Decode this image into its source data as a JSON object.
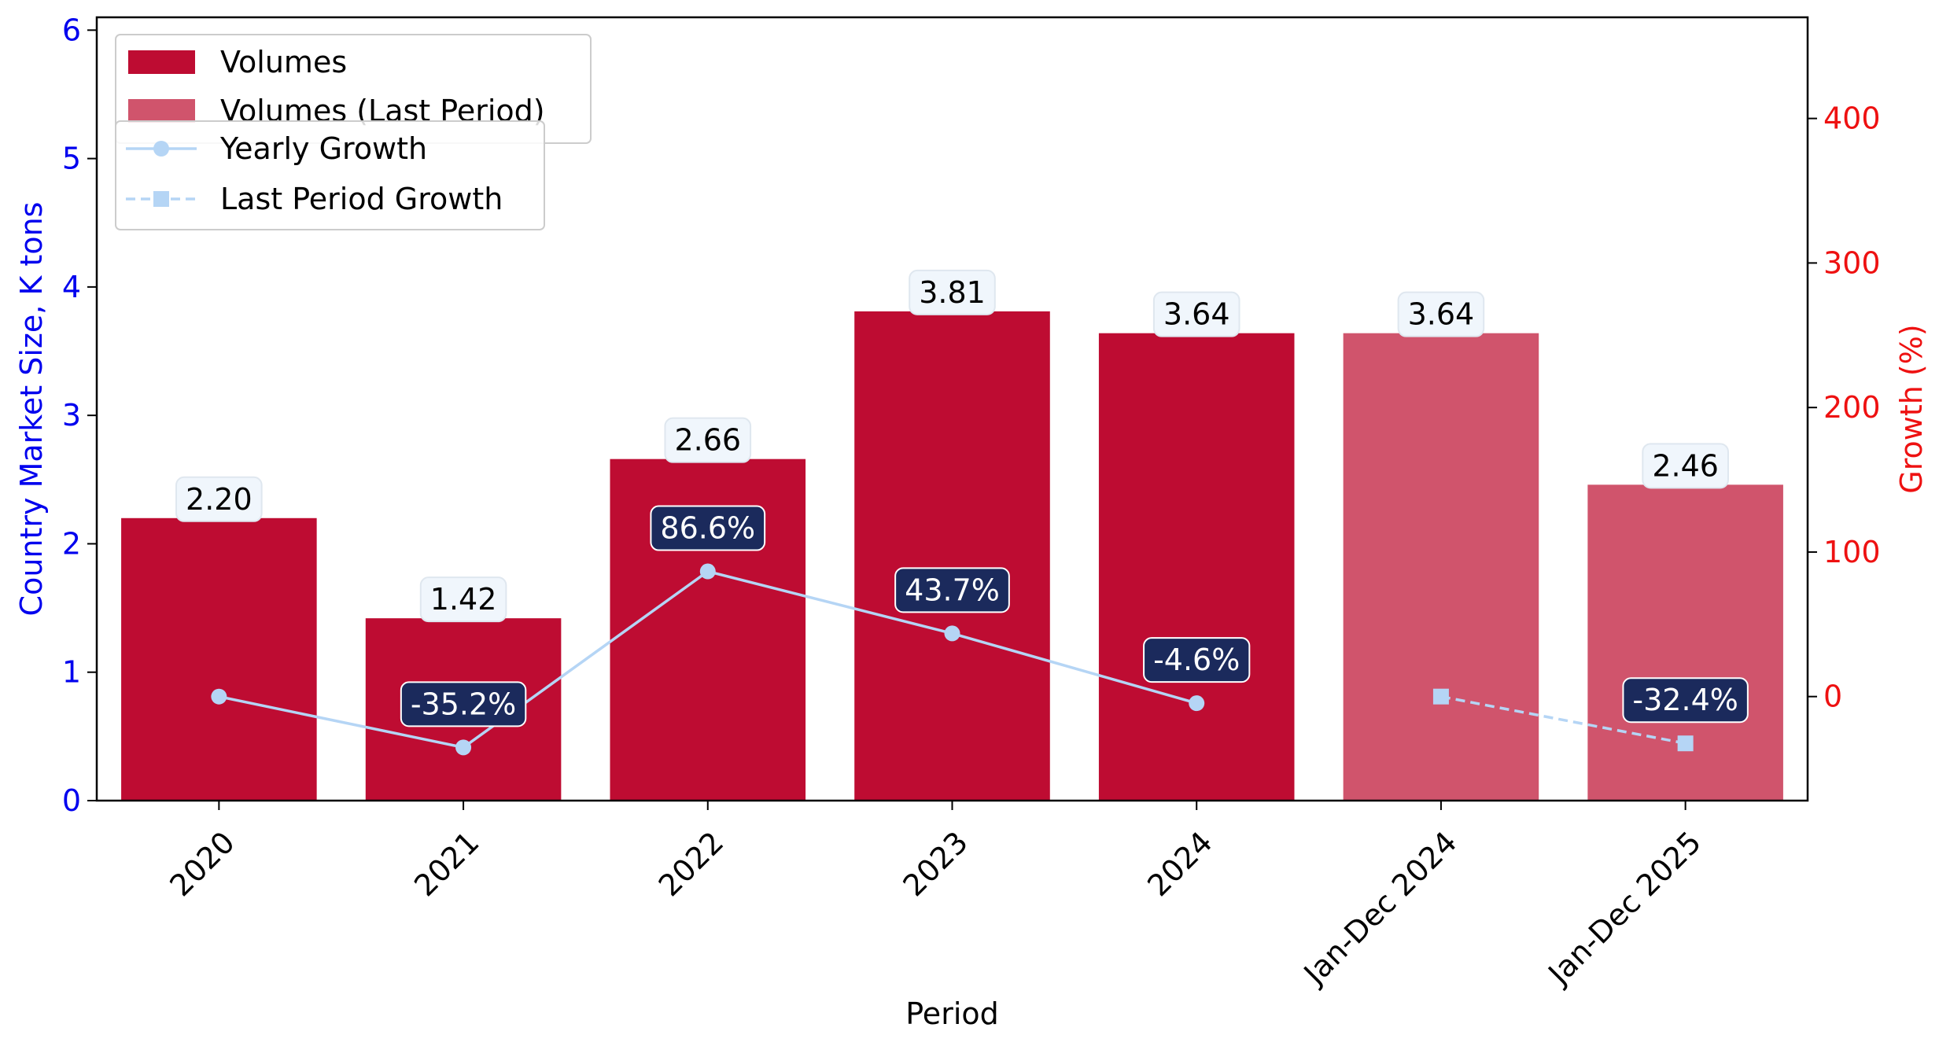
{
  "chart_data": {
    "type": "bar",
    "xlabel": "Period",
    "ylabel_left": "Country Market Size, K tons",
    "ylabel_right": "Growth (%)",
    "categories": [
      "2020",
      "2021",
      "2022",
      "2023",
      "2024",
      "Jan-Dec 2024",
      "Jan-Dec 2025"
    ],
    "ylim_left": [
      0,
      6.1
    ],
    "ylim_right": [
      -72,
      470
    ],
    "yticks_left": [
      "0",
      "1",
      "2",
      "3",
      "4",
      "5",
      "6"
    ],
    "yticks_right": [
      "0",
      "100",
      "200",
      "300",
      "400"
    ],
    "series": [
      {
        "name": "Volumes",
        "kind": "bar",
        "color": "#be0c32",
        "values": [
          2.2,
          1.42,
          2.66,
          3.81,
          3.64,
          null,
          null
        ],
        "labels": [
          "2.20",
          "1.42",
          "2.66",
          "3.81",
          "3.64",
          "",
          ""
        ]
      },
      {
        "name": "Volumes (Last Period)",
        "kind": "bar",
        "color": "#d0546c",
        "values": [
          null,
          null,
          null,
          null,
          null,
          3.64,
          2.46
        ],
        "labels": [
          "",
          "",
          "",
          "",
          "",
          "3.64",
          "2.46"
        ]
      },
      {
        "name": "Yearly Growth",
        "kind": "line",
        "axis": "right",
        "color": "#b5d5f5",
        "marker": "circle",
        "values": [
          0,
          -35.2,
          86.6,
          43.7,
          -4.6,
          null,
          null
        ],
        "labels": [
          "",
          "-35.2%",
          "86.6%",
          "43.7%",
          "-4.6%",
          "",
          ""
        ]
      },
      {
        "name": "Last Period Growth",
        "kind": "line",
        "axis": "right",
        "color": "#b5d5f5",
        "marker": "square",
        "dashed": true,
        "values": [
          null,
          null,
          null,
          null,
          null,
          0,
          -32.4
        ],
        "labels": [
          "",
          "",
          "",
          "",
          "",
          "",
          "-32.4%"
        ]
      }
    ],
    "legend": {
      "position": "top-left",
      "bars": [
        "Volumes",
        "Volumes (Last Period)"
      ],
      "lines": [
        "Yearly Growth",
        "Last Period Growth"
      ]
    },
    "colors": {
      "left_axis": "#0000ee",
      "right_axis": "#ee1111",
      "growth_label_bg": "#1b2a5c",
      "bar_label_bg": "#f0f6fc"
    },
    "grid": false
  }
}
